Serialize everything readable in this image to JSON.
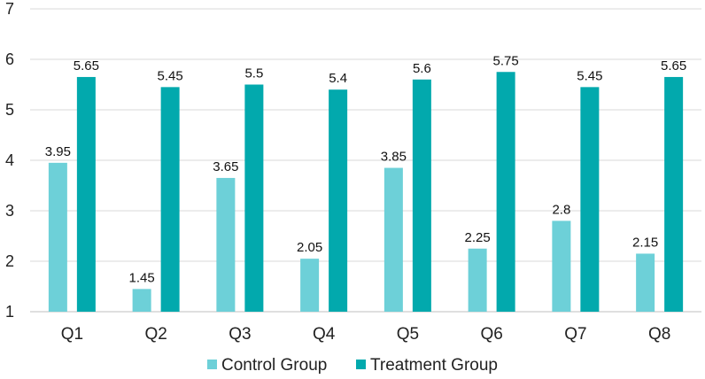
{
  "chart_data": {
    "type": "bar",
    "title": "",
    "xlabel": "",
    "ylabel": "",
    "ylim": [
      1,
      7
    ],
    "yticks": [
      1,
      2,
      3,
      4,
      5,
      6,
      7
    ],
    "grid": true,
    "legend_position": "bottom-center",
    "categories": [
      "Q1",
      "Q2",
      "Q3",
      "Q4",
      "Q5",
      "Q6",
      "Q7",
      "Q8"
    ],
    "series": [
      {
        "name": "Control Group",
        "color": "#6dd0d8",
        "values": [
          3.95,
          1.45,
          3.65,
          2.05,
          3.85,
          2.25,
          2.8,
          2.15
        ],
        "labels": [
          "3.95",
          "1.45",
          "3.65",
          "2.05",
          "3.85",
          "2.25",
          "2.8",
          "2.15"
        ]
      },
      {
        "name": "Treatment Group",
        "color": "#02a9ad",
        "values": [
          5.65,
          5.45,
          5.5,
          5.4,
          5.6,
          5.75,
          5.45,
          5.65
        ],
        "labels": [
          "5.65",
          "5.45",
          "5.5",
          "5.4",
          "5.6",
          "5.75",
          "5.45",
          "5.65"
        ]
      }
    ]
  }
}
